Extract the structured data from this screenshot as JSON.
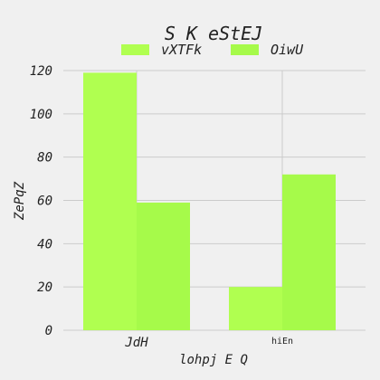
{
  "chart_data": {
    "type": "bar",
    "title": "S K eStEJ",
    "xlabel": "lohpj E Q",
    "ylabel": "ZePqZ",
    "categories": [
      "JdH",
      "hiEn"
    ],
    "series": [
      {
        "name": "vXTFk",
        "values": [
          119,
          20
        ],
        "color": "#b0ff50"
      },
      {
        "name": "OiwU",
        "values": [
          59,
          72
        ],
        "color": "#a6fa4a"
      }
    ],
    "yticks": [
      "0",
      "20",
      "40",
      "60",
      "80",
      "100",
      "120"
    ],
    "ylim": [
      0,
      120
    ],
    "grid": true,
    "legend_position": "top"
  }
}
